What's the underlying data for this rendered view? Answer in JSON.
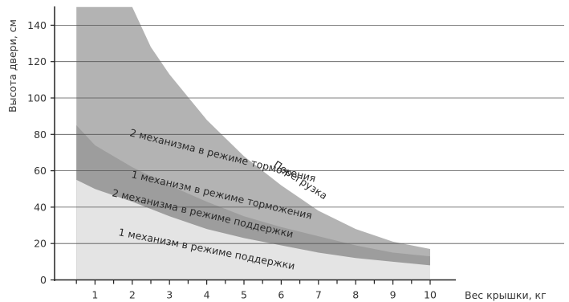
{
  "chart_data": {
    "type": "area",
    "xlabel": "Вес крышки, кг",
    "ylabel": "Высота двери, см",
    "xlim": [
      0,
      11
    ],
    "ylim": [
      0,
      150
    ],
    "x_ticks": [
      1,
      2,
      3,
      4,
      5,
      6,
      7,
      8,
      9,
      10
    ],
    "y_ticks": [
      0,
      20,
      40,
      60,
      80,
      100,
      120,
      140
    ],
    "grid": "horizontal",
    "x_range": [
      0.5,
      10
    ],
    "series": [
      {
        "name": "1 механизм в режиме поддержки",
        "color": "#e4e4e4",
        "x": [
          0.5,
          1,
          2,
          3,
          4,
          5,
          6,
          7,
          8,
          9,
          10
        ],
        "y": [
          55,
          50,
          43,
          35,
          28,
          23,
          19,
          15,
          12,
          10,
          8
        ]
      },
      {
        "name": "2 механизма в режиме поддержки",
        "color": "#cbcbcb",
        "x": [
          0.5,
          1,
          2,
          3,
          4,
          5,
          6,
          7,
          8,
          9,
          10
        ],
        "y": [
          55,
          50,
          43,
          35,
          28,
          23,
          19,
          15,
          12,
          10,
          8
        ]
      },
      {
        "name": "1 механизм в режиме торможения",
        "color": "#9d9d9d",
        "x": [
          0.5,
          1,
          2,
          3,
          4,
          5,
          6,
          7,
          8,
          9,
          10
        ],
        "y": [
          85,
          74,
          62,
          52,
          43,
          35,
          29,
          24,
          19,
          15,
          13
        ]
      },
      {
        "name": "2 механизма в режиме торможения",
        "color": "#b3b3b3",
        "x": [
          0.5,
          1,
          2,
          2.5,
          3,
          4,
          5,
          6,
          7,
          8,
          9,
          10
        ],
        "y": [
          150,
          150,
          150,
          128,
          113,
          88,
          68,
          52,
          38,
          28,
          21,
          17
        ]
      }
    ],
    "annotations": [
      "Перегрузка",
      "2 механизма в режиме торможения",
      "1 механизм в режиме торможения",
      "2 механизма в режиме поддержки",
      "1 механизм в режиме поддержки"
    ]
  }
}
